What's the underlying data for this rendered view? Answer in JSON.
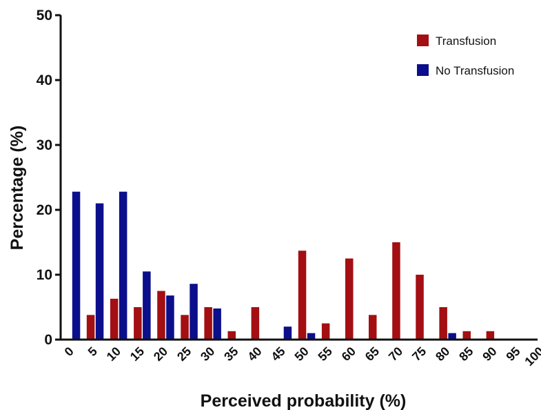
{
  "chart_data": {
    "type": "bar",
    "title": "",
    "xlabel": "Perceived probability (%)",
    "ylabel": "Percentage (%)",
    "ylim": [
      0,
      50
    ],
    "yticks": [
      0,
      10,
      20,
      30,
      40,
      50
    ],
    "grid": false,
    "legend_position": "top-right",
    "categories": [
      "0",
      "5",
      "10",
      "15",
      "20",
      "25",
      "30",
      "35",
      "40",
      "45",
      "50",
      "55",
      "60",
      "65",
      "70",
      "75",
      "80",
      "85",
      "90",
      "95",
      "100"
    ],
    "series": [
      {
        "name": "Transfusion",
        "color": "#a30f12",
        "values": [
          0,
          3.8,
          6.3,
          5,
          7.5,
          3.8,
          5,
          1.3,
          5,
          0,
          13.7,
          2.5,
          12.5,
          3.8,
          15,
          10,
          5,
          1.3,
          1.3,
          0,
          0
        ]
      },
      {
        "name": "No Transfusion",
        "color": "#0b0f8c",
        "values": [
          22.8,
          21,
          22.8,
          10.5,
          6.8,
          8.6,
          4.8,
          0,
          0,
          2,
          1,
          0,
          0,
          0,
          0,
          0,
          1,
          0,
          0,
          0,
          0
        ]
      }
    ]
  }
}
